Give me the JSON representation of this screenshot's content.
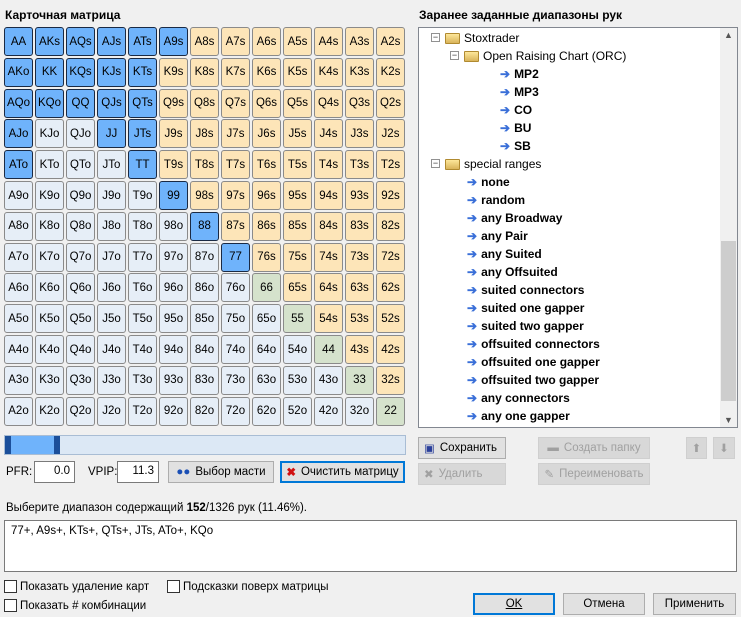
{
  "matrix_title": "Карточная матрица",
  "tree_title": "Заранее заданные диапазоны рук",
  "colors": {
    "selected": "#6fb3fb",
    "suited": "#fde5b8",
    "offsuit": "#e6eef7",
    "pair": "#d5e2cc"
  },
  "ranks": [
    "A",
    "K",
    "Q",
    "J",
    "T",
    "9",
    "8",
    "7",
    "6",
    "5",
    "4",
    "3",
    "2"
  ],
  "selected_hands": [
    "AA",
    "AKs",
    "AQs",
    "AJs",
    "ATs",
    "A9s",
    "AKo",
    "KK",
    "KQs",
    "KJs",
    "KTs",
    "AQo",
    "KQo",
    "QQ",
    "QJs",
    "QTs",
    "AJo",
    "JJ",
    "JTs",
    "ATo",
    "TT",
    "99",
    "88",
    "77"
  ],
  "slider": {
    "range_percent": [
      0,
      11.46
    ]
  },
  "pfr_label": "PFR:",
  "pfr_value": "0.0",
  "vpip_label": "VPIP:",
  "vpip_value": "11.3",
  "suit_button": "Выбор масти",
  "clear_button": "Очистить матрицу",
  "tree": [
    {
      "label": "Stoxtrader",
      "type": "folder",
      "level": 0
    },
    {
      "label": "Open Raising Chart (ORC)",
      "type": "folder",
      "level": 1
    },
    {
      "label": "MP2",
      "type": "leaf",
      "level": 2
    },
    {
      "label": "MP3",
      "type": "leaf",
      "level": 2
    },
    {
      "label": "CO",
      "type": "leaf",
      "level": 2
    },
    {
      "label": "BU",
      "type": "leaf",
      "level": 2
    },
    {
      "label": "SB",
      "type": "leaf",
      "level": 2
    },
    {
      "label": "special ranges",
      "type": "folder",
      "level": 0
    },
    {
      "label": "none",
      "type": "leaf",
      "level": 1
    },
    {
      "label": "random",
      "type": "leaf",
      "level": 1
    },
    {
      "label": "any Broadway",
      "type": "leaf",
      "level": 1
    },
    {
      "label": "any Pair",
      "type": "leaf",
      "level": 1
    },
    {
      "label": "any Suited",
      "type": "leaf",
      "level": 1
    },
    {
      "label": "any Offsuited",
      "type": "leaf",
      "level": 1
    },
    {
      "label": "suited connectors",
      "type": "leaf",
      "level": 1
    },
    {
      "label": "suited one gapper",
      "type": "leaf",
      "level": 1
    },
    {
      "label": "suited two gapper",
      "type": "leaf",
      "level": 1
    },
    {
      "label": "offsuited connectors",
      "type": "leaf",
      "level": 1
    },
    {
      "label": "offsuited one gapper",
      "type": "leaf",
      "level": 1
    },
    {
      "label": "offsuited two gapper",
      "type": "leaf",
      "level": 1
    },
    {
      "label": "any connectors",
      "type": "leaf",
      "level": 1
    },
    {
      "label": "any one gapper",
      "type": "leaf",
      "level": 1
    }
  ],
  "buttons": {
    "save": "Сохранить",
    "create_folder": "Создать папку",
    "delete": "Удалить",
    "rename": "Переименовать",
    "ok": "OK",
    "cancel": "Отмена",
    "apply": "Применить"
  },
  "status": {
    "prefix": "Выберите диапазон содержащий ",
    "count": "152",
    "suffix": "/1326 рук (11.46%)."
  },
  "range_text": "77+, A9s+, KTs+, QTs+, JTs, ATo+, KQo",
  "checkboxes": {
    "show_card_removal": "Показать удаление карт",
    "hints_over_matrix": "Подсказки поверх матрицы",
    "show_combos": "Показать # комбинации"
  }
}
